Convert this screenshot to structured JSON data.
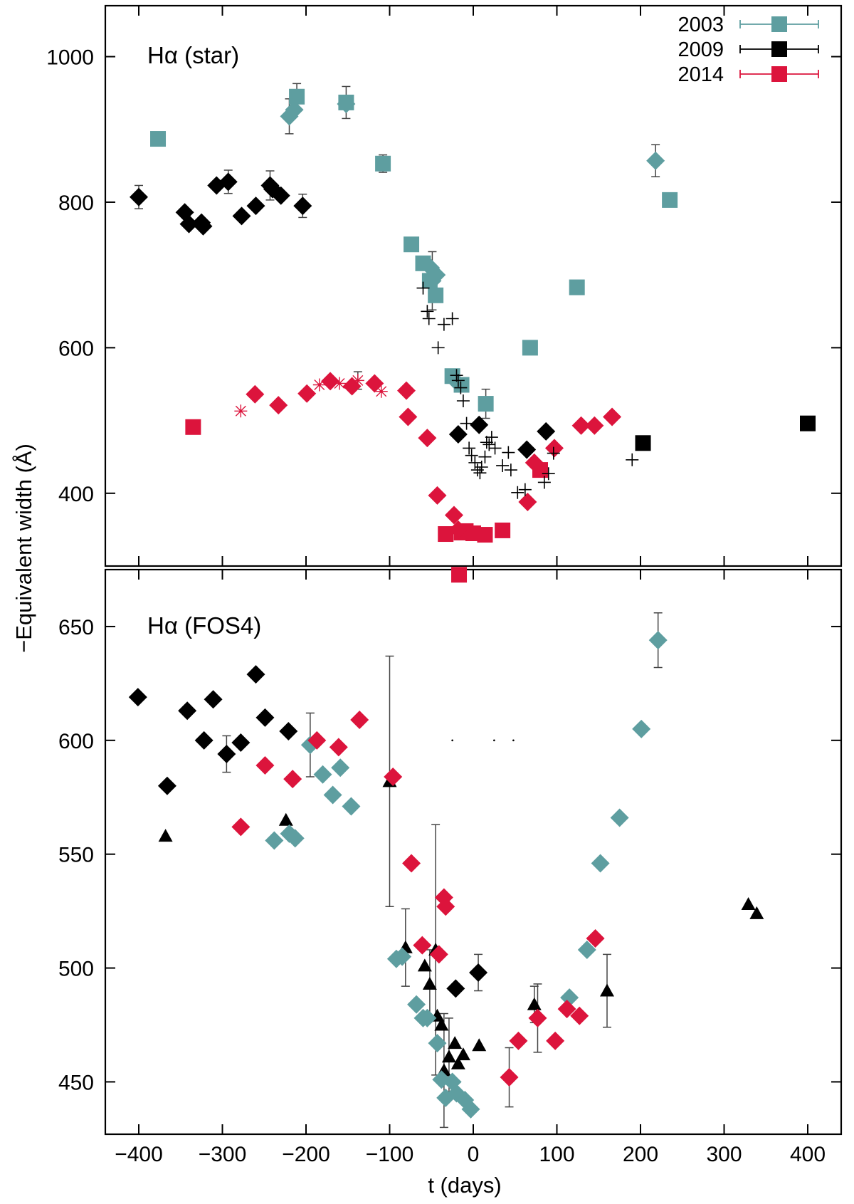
{
  "colors": {
    "2003": "#5e9ea0",
    "2009": "#000000",
    "2014": "#dc143c"
  },
  "chart_data": {
    "type": "scatter",
    "xlabel": "t (days)",
    "ylabel": "−Equivalent width (Å)",
    "xlim": [
      -440,
      440
    ],
    "x_ticks": [
      -400,
      -300,
      -200,
      -100,
      0,
      100,
      200,
      300,
      400
    ],
    "legend": {
      "placement": "top-right",
      "entries": [
        {
          "label": "2003",
          "color": "#5e9ea0",
          "marker": "square"
        },
        {
          "label": "2009",
          "color": "#000000",
          "marker": "square"
        },
        {
          "label": "2014",
          "color": "#dc143c",
          "marker": "square"
        }
      ]
    },
    "panels": [
      {
        "id": "top",
        "label": "Hα (star)",
        "ylim": [
          300,
          1070
        ],
        "y_ticks": [
          400,
          600,
          800,
          1000
        ],
        "series": [
          {
            "year": "2003",
            "marker": "square",
            "color": "#5e9ea0",
            "points": [
              [
                -377,
                887
              ],
              [
                -211,
                945
              ],
              [
                -152,
                937
              ],
              [
                -108,
                853
              ],
              [
                -74,
                742
              ],
              [
                -60,
                716
              ],
              [
                -52,
                692
              ],
              [
                -45,
                672
              ],
              [
                -25,
                561
              ],
              [
                -14,
                549
              ],
              [
                15,
                523
              ],
              [
                68,
                600
              ],
              [
                124,
                683
              ],
              [
                235,
                803
              ]
            ]
          },
          {
            "year": "2003",
            "marker": "diamond",
            "color": "#5e9ea0",
            "points": [
              [
                -220,
                918
              ],
              [
                -214,
                927
              ],
              [
                -152,
                935
              ],
              [
                -51,
                710
              ],
              [
                -44,
                700
              ],
              [
                -49,
                692
              ],
              [
                -20,
                553
              ],
              [
                218,
                857
              ]
            ]
          },
          {
            "year": "2009",
            "marker": "diamond",
            "color": "#000000",
            "points": [
              [
                -400,
                807
              ],
              [
                -345,
                786
              ],
              [
                -340,
                770
              ],
              [
                -325,
                772
              ],
              [
                -323,
                767
              ],
              [
                -307,
                823
              ],
              [
                -293,
                828
              ],
              [
                -277,
                781
              ],
              [
                -260,
                795
              ],
              [
                -243,
                823
              ],
              [
                -240,
                818
              ],
              [
                -230,
                809
              ],
              [
                -204,
                795
              ],
              [
                -18,
                481
              ],
              [
                7,
                494
              ],
              [
                64,
                460
              ],
              [
                87,
                485
              ]
            ]
          },
          {
            "year": "2009",
            "marker": "square",
            "color": "#000000",
            "points": [
              [
                203,
                469
              ],
              [
                400,
                496
              ]
            ]
          },
          {
            "year": "2014",
            "marker": "square",
            "color": "#dc143c",
            "points": [
              [
                -335,
                491
              ],
              [
                -33,
                344
              ],
              [
                -17,
                288
              ],
              [
                -14,
                346
              ],
              [
                -9,
                348
              ],
              [
                0,
                345
              ],
              [
                14,
                343
              ],
              [
                35,
                349
              ],
              [
                80,
                432
              ]
            ]
          },
          {
            "year": "2014",
            "marker": "diamond",
            "color": "#dc143c",
            "points": [
              [
                -261,
                536
              ],
              [
                -233,
                521
              ],
              [
                -199,
                537
              ],
              [
                -171,
                554
              ],
              [
                -145,
                547
              ],
              [
                -118,
                551
              ],
              [
                -80,
                541
              ],
              [
                -78,
                505
              ],
              [
                -55,
                476
              ],
              [
                -43,
                397
              ],
              [
                -23,
                370
              ],
              [
                -18,
                350
              ],
              [
                65,
                388
              ],
              [
                73,
                442
              ],
              [
                97,
                462
              ],
              [
                129,
                493
              ],
              [
                145,
                493
              ],
              [
                166,
                505
              ]
            ]
          },
          {
            "year": "2014",
            "marker": "asterisk",
            "color": "#dc143c",
            "points": [
              [
                -278,
                513
              ],
              [
                -184,
                549
              ],
              [
                -160,
                551
              ],
              [
                -138,
                555
              ],
              [
                -110,
                540
              ]
            ]
          },
          {
            "year": "2009",
            "marker": "plus",
            "color": "#000000",
            "points": [
              [
                -60,
                682
              ],
              [
                -55,
                650
              ],
              [
                -53,
                640
              ],
              [
                -42,
                600
              ],
              [
                -35,
                632
              ],
              [
                -25,
                640
              ],
              [
                -20,
                562
              ],
              [
                -18,
                555
              ],
              [
                -15,
                545
              ],
              [
                -12,
                527
              ],
              [
                -8,
                496
              ],
              [
                -5,
                462
              ],
              [
                -2,
                452
              ],
              [
                2,
                442
              ],
              [
                5,
                432
              ],
              [
                8,
                428
              ],
              [
                10,
                436
              ],
              [
                14,
                450
              ],
              [
                16,
                470
              ],
              [
                19,
                467
              ],
              [
                22,
                477
              ],
              [
                26,
                462
              ],
              [
                35,
                438
              ],
              [
                42,
                456
              ],
              [
                45,
                432
              ],
              [
                53,
                401
              ],
              [
                62,
                405
              ],
              [
                85,
                415
              ],
              [
                90,
                427
              ],
              [
                96,
                455
              ],
              [
                190,
                446
              ]
            ]
          }
        ]
      },
      {
        "id": "bottom",
        "label": "Hα (FOS4)",
        "ylim": [
          427,
          675
        ],
        "y_ticks": [
          450,
          500,
          550,
          600,
          650
        ],
        "series": [
          {
            "year": "2009",
            "marker": "diamond",
            "color": "#000000",
            "points": [
              [
                -401,
                619
              ],
              [
                -366,
                580
              ],
              [
                -342,
                613
              ],
              [
                -322,
                600
              ],
              [
                -311,
                618
              ],
              [
                -295,
                594
              ],
              [
                -278,
                599
              ],
              [
                -260,
                629
              ],
              [
                -249,
                610
              ],
              [
                -221,
                604
              ],
              [
                -21,
                491
              ],
              [
                6,
                498
              ]
            ]
          },
          {
            "year": "2009",
            "marker": "triangle",
            "color": "#000000",
            "points": [
              [
                -368,
                558
              ],
              [
                -224,
                565
              ],
              [
                -100,
                582
              ],
              [
                -81,
                509
              ],
              [
                -58,
                501
              ],
              [
                -52,
                493
              ],
              [
                -45,
                508
              ],
              [
                -43,
                479
              ],
              [
                -38,
                475
              ],
              [
                -35,
                455
              ],
              [
                -29,
                461
              ],
              [
                -22,
                467
              ],
              [
                -18,
                458
              ],
              [
                -12,
                462
              ],
              [
                7,
                466
              ],
              [
                73,
                484
              ],
              [
                160,
                490
              ],
              [
                329,
                528
              ],
              [
                339,
                524
              ]
            ]
          },
          {
            "year": "2003",
            "marker": "diamond",
            "color": "#5e9ea0",
            "points": [
              [
                -238,
                556
              ],
              [
                -220,
                559
              ],
              [
                -213,
                557
              ],
              [
                -195,
                598
              ],
              [
                -180,
                585
              ],
              [
                -168,
                576
              ],
              [
                -159,
                588
              ],
              [
                -146,
                571
              ],
              [
                -92,
                504
              ],
              [
                -85,
                505
              ],
              [
                -68,
                484
              ],
              [
                -60,
                478
              ],
              [
                -55,
                478
              ],
              [
                -43,
                467
              ],
              [
                -38,
                451
              ],
              [
                -33,
                443
              ],
              [
                -25,
                450
              ],
              [
                -20,
                445
              ],
              [
                -10,
                442
              ],
              [
                -3,
                438
              ],
              [
                115,
                487
              ],
              [
                136,
                508
              ],
              [
                152,
                546
              ],
              [
                175,
                566
              ],
              [
                201,
                605
              ],
              [
                221,
                644
              ]
            ]
          },
          {
            "year": "2014",
            "marker": "diamond",
            "color": "#dc143c",
            "points": [
              [
                -278,
                562
              ],
              [
                -249,
                589
              ],
              [
                -216,
                583
              ],
              [
                -187,
                600
              ],
              [
                -161,
                597
              ],
              [
                -136,
                609
              ],
              [
                -96,
                584
              ],
              [
                -74,
                546
              ],
              [
                -61,
                510
              ],
              [
                -41,
                506
              ],
              [
                -35,
                531
              ],
              [
                -33,
                527
              ],
              [
                43,
                452
              ],
              [
                54,
                468
              ],
              [
                77,
                478
              ],
              [
                98,
                468
              ],
              [
                112,
                482
              ],
              [
                127,
                479
              ],
              [
                146,
                513
              ]
            ]
          },
          {
            "year": "",
            "marker": "dot",
            "color": "#000000",
            "points": [
              [
                -25,
                600
              ],
              [
                25,
                600
              ],
              [
                48,
                600
              ]
            ]
          }
        ]
      }
    ],
    "error_bars": [
      {
        "panel": "top",
        "x": -211,
        "y": 945,
        "err": 18
      },
      {
        "panel": "top",
        "x": -220,
        "y": 918,
        "err": 24
      },
      {
        "panel": "top",
        "x": -152,
        "y": 937,
        "err": 22
      },
      {
        "panel": "top",
        "x": -108,
        "y": 853,
        "err": 12
      },
      {
        "panel": "top",
        "x": 218,
        "y": 857,
        "err": 22
      },
      {
        "panel": "top",
        "x": -400,
        "y": 807,
        "err": 16
      },
      {
        "panel": "top",
        "x": -293,
        "y": 828,
        "err": 16
      },
      {
        "panel": "top",
        "x": -243,
        "y": 823,
        "err": 20
      },
      {
        "panel": "top",
        "x": -204,
        "y": 795,
        "err": 16
      },
      {
        "panel": "top",
        "x": -49,
        "y": 692,
        "err": 40
      },
      {
        "panel": "top",
        "x": 15,
        "y": 523,
        "err": 20
      },
      {
        "panel": "top",
        "x": -138,
        "y": 555,
        "err": 12
      },
      {
        "panel": "bottom",
        "x": -100,
        "y": 582,
        "err": 55
      },
      {
        "panel": "bottom",
        "x": -45,
        "y": 508,
        "err": 55
      },
      {
        "panel": "bottom",
        "x": -81,
        "y": 509,
        "err": 17
      },
      {
        "panel": "bottom",
        "x": -35,
        "y": 455,
        "err": 25
      },
      {
        "panel": "bottom",
        "x": -29,
        "y": 461,
        "err": 17
      },
      {
        "panel": "bottom",
        "x": 160,
        "y": 490,
        "err": 16
      },
      {
        "panel": "bottom",
        "x": 73,
        "y": 484,
        "err": 8
      },
      {
        "panel": "bottom",
        "x": 77,
        "y": 478,
        "err": 15
      },
      {
        "panel": "bottom",
        "x": 43,
        "y": 452,
        "err": 13
      },
      {
        "panel": "bottom",
        "x": 221,
        "y": 644,
        "err": 12
      },
      {
        "panel": "bottom",
        "x": -195,
        "y": 598,
        "err": 14
      },
      {
        "panel": "bottom",
        "x": -295,
        "y": 594,
        "err": 8
      },
      {
        "panel": "bottom",
        "x": 6,
        "y": 498,
        "err": 8
      },
      {
        "panel": "bottom",
        "x": -52,
        "y": 493,
        "err": 15
      }
    ]
  }
}
